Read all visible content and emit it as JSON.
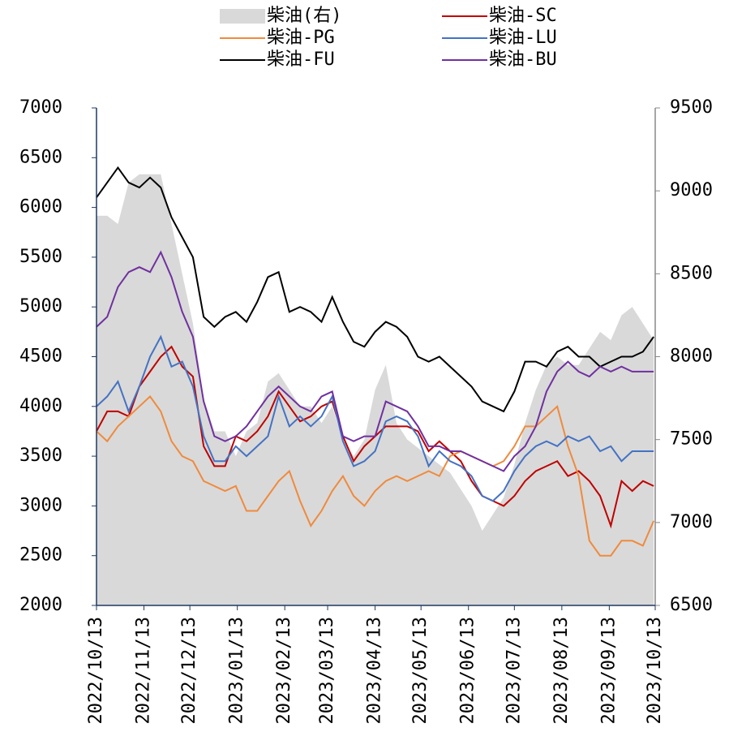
{
  "chart_data": {
    "type": "line",
    "x": [
      "2022-10-13",
      "2022-10-20",
      "2022-10-27",
      "2022-11-03",
      "2022-11-10",
      "2022-11-17",
      "2022-11-24",
      "2022-12-01",
      "2022-12-08",
      "2022-12-15",
      "2022-12-22",
      "2022-12-29",
      "2023-01-05",
      "2023-01-12",
      "2023-01-19",
      "2023-01-26",
      "2023-02-02",
      "2023-02-09",
      "2023-02-16",
      "2023-02-23",
      "2023-03-02",
      "2023-03-09",
      "2023-03-16",
      "2023-03-23",
      "2023-03-30",
      "2023-04-06",
      "2023-04-13",
      "2023-04-20",
      "2023-04-27",
      "2023-05-04",
      "2023-05-11",
      "2023-05-18",
      "2023-05-25",
      "2023-06-01",
      "2023-06-08",
      "2023-06-15",
      "2023-06-22",
      "2023-06-29",
      "2023-07-06",
      "2023-07-13",
      "2023-07-20",
      "2023-07-27",
      "2023-08-03",
      "2023-08-10",
      "2023-08-17",
      "2023-08-24",
      "2023-08-31",
      "2023-09-07",
      "2023-09-14",
      "2023-09-21",
      "2023-09-28",
      "2023-10-05",
      "2023-10-12"
    ],
    "xlim": [
      "2022-10-13",
      "2023-10-13"
    ],
    "xticks": [
      "2022/10/13",
      "2022/11/13",
      "2022/12/13",
      "2023/01/13",
      "2023/02/13",
      "2023/03/13",
      "2023/04/13",
      "2023/05/13",
      "2023/06/13",
      "2023/07/13",
      "2023/08/13",
      "2023/09/13",
      "2023/10/13"
    ],
    "ylim": [
      2000,
      7000
    ],
    "yticks": [
      2000,
      2500,
      3000,
      3500,
      4000,
      4500,
      5000,
      5500,
      6000,
      6500,
      7000
    ],
    "y2lim": [
      6500,
      9500
    ],
    "y2ticks": [
      6500,
      7000,
      7500,
      8000,
      8500,
      9000,
      9500
    ],
    "series": [
      {
        "name": "柴油(右)",
        "type": "area",
        "axis": "y2",
        "color": "#d9d9d9",
        "values": [
          8850,
          8850,
          8800,
          9050,
          9100,
          9100,
          9100,
          8800,
          8500,
          8200,
          7750,
          7550,
          7550,
          7400,
          7550,
          7600,
          7850,
          7900,
          7800,
          7700,
          7700,
          7600,
          7700,
          7500,
          7400,
          7500,
          7800,
          7950,
          7600,
          7500,
          7450,
          7400,
          7350,
          7300,
          7200,
          7100,
          6950,
          7050,
          7150,
          7350,
          7600,
          7800,
          7950,
          8000,
          7950,
          7950,
          8050,
          8150,
          8100,
          8250,
          8300,
          8200,
          8100
        ]
      },
      {
        "name": "柴油-SC",
        "color": "#c00000",
        "values": [
          3750,
          3950,
          3950,
          3900,
          4200,
          4350,
          4500,
          4600,
          4400,
          4300,
          3600,
          3400,
          3400,
          3700,
          3650,
          3750,
          3900,
          4150,
          4000,
          3850,
          3900,
          4000,
          4050,
          3700,
          3450,
          3600,
          3700,
          3800,
          3800,
          3800,
          3750,
          3550,
          3650,
          3550,
          3450,
          3250,
          3100,
          3050,
          3000,
          3100,
          3250,
          3350,
          3400,
          3450,
          3300,
          3350,
          3250,
          3100,
          2800,
          3250,
          3150,
          3250,
          3200
        ]
      },
      {
        "name": "柴油-PG",
        "color": "#f08a3c",
        "values": [
          3750,
          3650,
          3800,
          3900,
          4000,
          4100,
          3950,
          3650,
          3500,
          3450,
          3250,
          3200,
          3150,
          3200,
          2950,
          2950,
          3100,
          3250,
          3350,
          3050,
          2800,
          2950,
          3150,
          3300,
          3100,
          3000,
          3150,
          3250,
          3300,
          3250,
          3300,
          3350,
          3300,
          3500,
          3550,
          3500,
          3450,
          3400,
          3450,
          3600,
          3800,
          3800,
          3900,
          4000,
          3600,
          3300,
          2650,
          2500,
          2500,
          2650,
          2650,
          2600,
          2850
        ]
      },
      {
        "name": "柴油-LU",
        "color": "#4472c4",
        "values": [
          4000,
          4100,
          4250,
          3950,
          4200,
          4500,
          4700,
          4400,
          4450,
          4200,
          3700,
          3450,
          3450,
          3600,
          3500,
          3600,
          3700,
          4100,
          3800,
          3900,
          3800,
          3900,
          4100,
          3650,
          3400,
          3450,
          3550,
          3850,
          3900,
          3850,
          3700,
          3400,
          3550,
          3450,
          3400,
          3300,
          3100,
          3050,
          3150,
          3350,
          3500,
          3600,
          3650,
          3600,
          3700,
          3650,
          3700,
          3550,
          3600,
          3450,
          3550,
          3550,
          3550
        ]
      },
      {
        "name": "柴油-FU",
        "color": "#000000",
        "values": [
          6100,
          6250,
          6400,
          6250,
          6200,
          6300,
          6200,
          5900,
          5700,
          5500,
          4900,
          4800,
          4900,
          4950,
          4850,
          5050,
          5300,
          5350,
          4950,
          5000,
          4950,
          4850,
          5100,
          4850,
          4650,
          4600,
          4750,
          4850,
          4800,
          4700,
          4500,
          4450,
          4500,
          4400,
          4300,
          4200,
          4050,
          4000,
          3950,
          4150,
          4450,
          4450,
          4400,
          4550,
          4600,
          4500,
          4500,
          4400,
          4450,
          4500,
          4500,
          4550,
          4700
        ]
      },
      {
        "name": "柴油-BU",
        "color": "#7030a0",
        "values": [
          4800,
          4900,
          5200,
          5350,
          5400,
          5350,
          5550,
          5300,
          4950,
          4700,
          4050,
          3700,
          3650,
          3700,
          3800,
          3950,
          4100,
          4200,
          4100,
          4000,
          3950,
          4100,
          4150,
          3700,
          3650,
          3700,
          3700,
          4050,
          4000,
          3950,
          3800,
          3600,
          3600,
          3550,
          3550,
          3500,
          3450,
          3400,
          3350,
          3500,
          3600,
          3800,
          4150,
          4350,
          4450,
          4350,
          4300,
          4400,
          4350,
          4400,
          4350,
          4350,
          4350
        ]
      }
    ]
  }
}
